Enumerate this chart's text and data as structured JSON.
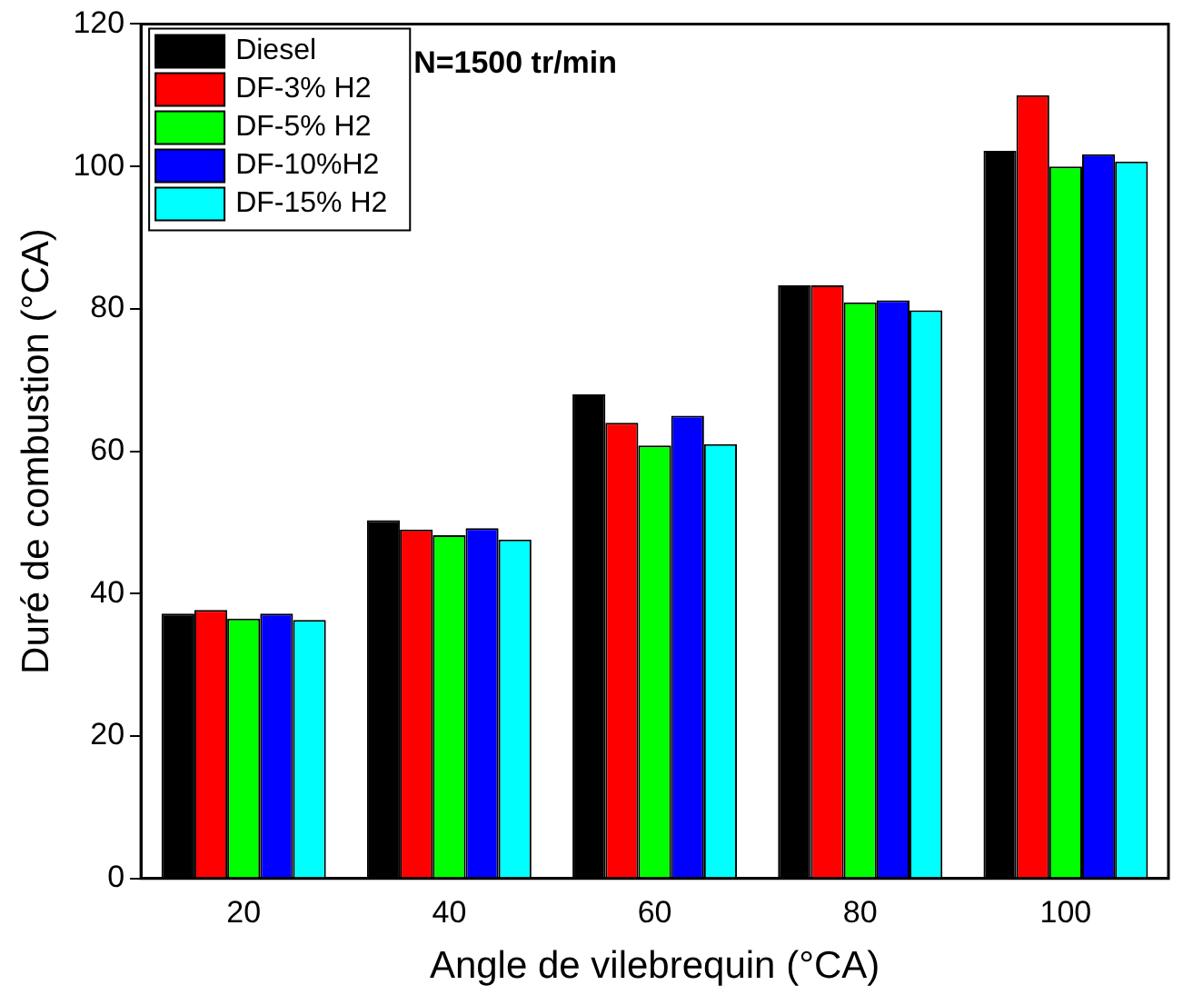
{
  "chart_data": {
    "type": "bar",
    "xlabel": "Angle de vilebrequin (°CA)",
    "ylabel": "Duré de combustion (°CA)",
    "annotations": [
      "N=1500 tr/min"
    ],
    "categories": [
      "20",
      "40",
      "60",
      "80",
      "100"
    ],
    "series": [
      {
        "name": "Diesel",
        "color": "#000000",
        "values": [
          37.2,
          50.3,
          68,
          83.3,
          102.2
        ]
      },
      {
        "name": "DF-3% H2",
        "color": "#ff0000",
        "values": [
          37.7,
          49,
          64,
          83.3,
          110
        ]
      },
      {
        "name": "DF-5% H2",
        "color": "#00ff00",
        "values": [
          36.5,
          48.2,
          60.8,
          80.9,
          100
        ]
      },
      {
        "name": "DF-10%H2",
        "color": "#0000ff",
        "values": [
          37.2,
          49.2,
          65,
          81.2,
          101.7
        ]
      },
      {
        "name": "DF-15% H2",
        "color": "#00ffff",
        "values": [
          36.3,
          47.6,
          61,
          79.8,
          100.7
        ]
      }
    ],
    "ylim": [
      0,
      120
    ],
    "yticks": [
      0,
      20,
      40,
      60,
      80,
      100,
      120
    ],
    "grid": false,
    "legend": "top left"
  }
}
